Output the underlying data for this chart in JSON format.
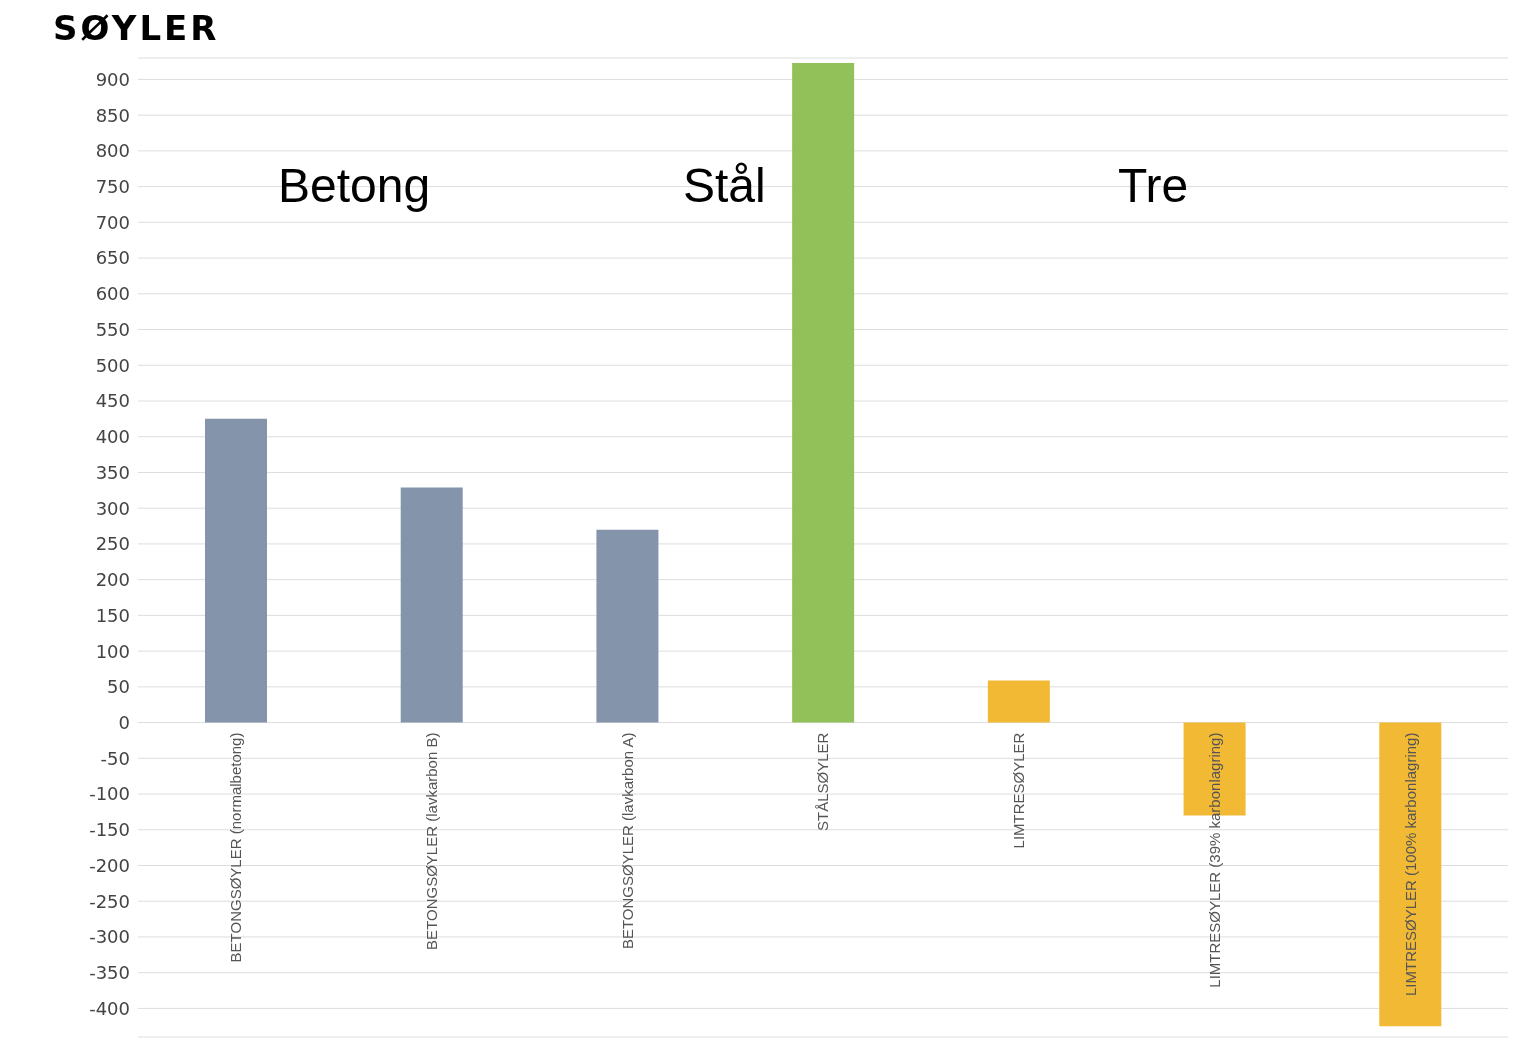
{
  "chart_data": {
    "type": "bar",
    "title": "SØYLER",
    "categories": [
      "BETONGSØYLER (normalbetong)",
      "BETONGSØYLER (lavkarbon B)",
      "BETONGSØYLER (lavkarbon A)",
      "STÅLSØYLER",
      "LIMTRESØYLER",
      "LIMTRESØYLER (39% karbonlagring)",
      "LIMTRESØYLER (100% karbonlagring)"
    ],
    "values": [
      425,
      329,
      270,
      923,
      59,
      -130,
      -425
    ],
    "colors": [
      "#8394ab",
      "#8394ab",
      "#8394ab",
      "#92c15a",
      "#f2b935",
      "#f2b935",
      "#f2b935"
    ],
    "ylim": [
      -440,
      930
    ],
    "yticks": [
      -400,
      -350,
      -300,
      -250,
      -200,
      -150,
      -100,
      -50,
      0,
      50,
      100,
      150,
      200,
      250,
      300,
      350,
      400,
      450,
      500,
      550,
      600,
      650,
      700,
      750,
      800,
      850,
      900
    ],
    "grid": "y",
    "annotations": [
      "Betong",
      "Stål",
      "Tre"
    ]
  }
}
